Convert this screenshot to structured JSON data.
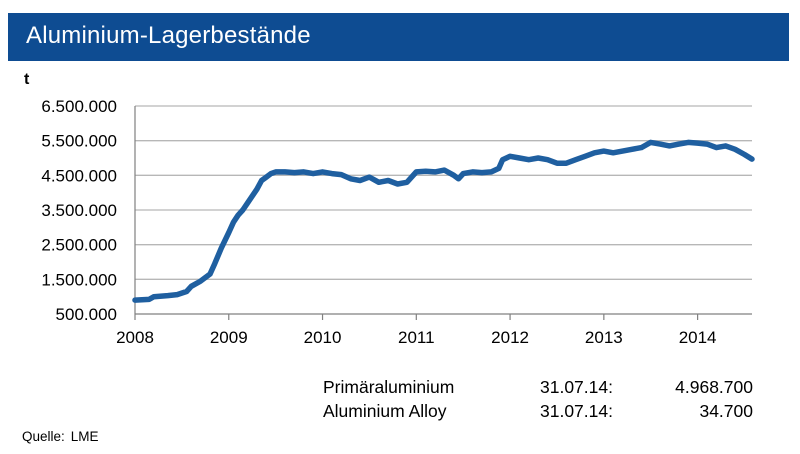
{
  "header": {
    "title": "Aluminium-Lagerbestände"
  },
  "chart_data": {
    "type": "line",
    "title": "Aluminium-Lagerbestände",
    "ylabel": "t",
    "xlabel": "",
    "ylim": [
      500000,
      6500000
    ],
    "xlim": [
      2008,
      2014.58
    ],
    "yticks": [
      500000,
      1500000,
      2500000,
      3500000,
      4500000,
      5500000,
      6500000
    ],
    "ytick_labels": [
      "500.000",
      "1.500.000",
      "2.500.000",
      "3.500.000",
      "4.500.000",
      "5.500.000",
      "6.500.000"
    ],
    "xticks": [
      2008,
      2009,
      2010,
      2011,
      2012,
      2013,
      2014
    ],
    "xtick_labels": [
      "2008",
      "2009",
      "2010",
      "2011",
      "2012",
      "2013",
      "2014"
    ],
    "grid": "horizontal",
    "color": "#1f5fa0",
    "series": [
      {
        "name": "Aluminium-Lagerbestände",
        "x": [
          2008.0,
          2008.15,
          2008.2,
          2008.35,
          2008.45,
          2008.55,
          2008.6,
          2008.7,
          2008.8,
          2008.85,
          2008.92,
          2009.0,
          2009.05,
          2009.1,
          2009.15,
          2009.2,
          2009.3,
          2009.35,
          2009.4,
          2009.45,
          2009.5,
          2009.6,
          2009.7,
          2009.8,
          2009.9,
          2010.0,
          2010.1,
          2010.2,
          2010.3,
          2010.4,
          2010.5,
          2010.6,
          2010.7,
          2010.8,
          2010.9,
          2011.0,
          2011.1,
          2011.2,
          2011.3,
          2011.4,
          2011.45,
          2011.5,
          2011.6,
          2011.7,
          2011.8,
          2011.88,
          2011.92,
          2012.0,
          2012.1,
          2012.2,
          2012.3,
          2012.4,
          2012.5,
          2012.6,
          2012.7,
          2012.8,
          2012.9,
          2013.0,
          2013.1,
          2013.2,
          2013.3,
          2013.4,
          2013.5,
          2013.6,
          2013.7,
          2013.8,
          2013.9,
          2014.0,
          2014.1,
          2014.2,
          2014.3,
          2014.4,
          2014.5,
          2014.58
        ],
        "values": [
          900000,
          920000,
          1000000,
          1030000,
          1060000,
          1150000,
          1300000,
          1450000,
          1650000,
          1950000,
          2400000,
          2850000,
          3150000,
          3350000,
          3500000,
          3700000,
          4100000,
          4350000,
          4450000,
          4550000,
          4600000,
          4600000,
          4580000,
          4600000,
          4550000,
          4600000,
          4550000,
          4520000,
          4400000,
          4350000,
          4450000,
          4300000,
          4350000,
          4250000,
          4300000,
          4600000,
          4620000,
          4600000,
          4650000,
          4500000,
          4400000,
          4550000,
          4600000,
          4580000,
          4600000,
          4700000,
          4950000,
          5050000,
          5000000,
          4950000,
          5000000,
          4950000,
          4850000,
          4850000,
          4950000,
          5050000,
          5150000,
          5200000,
          5150000,
          5200000,
          5250000,
          5300000,
          5450000,
          5400000,
          5350000,
          5400000,
          5450000,
          5430000,
          5400000,
          5300000,
          5350000,
          5250000,
          5100000,
          4968700
        ]
      }
    ]
  },
  "legend_table": {
    "rows": [
      {
        "name": "Primäraluminium",
        "date": "31.07.14:",
        "value": "4.968.700"
      },
      {
        "name": "Aluminium Alloy",
        "date": "31.07.14:",
        "value": "34.700"
      }
    ]
  },
  "source": {
    "label": "Quelle:",
    "value": "LME"
  }
}
